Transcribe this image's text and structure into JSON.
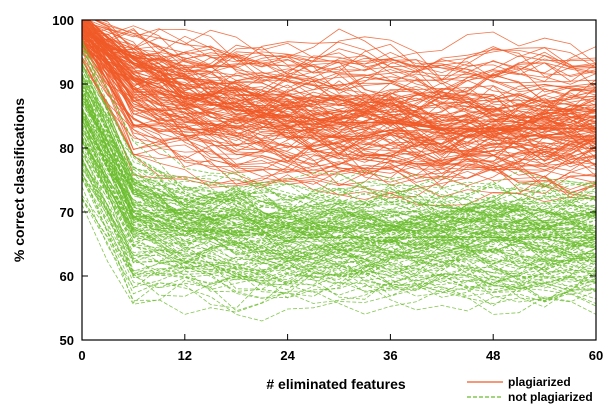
{
  "chart_data": {
    "type": "line",
    "xlabel": "# eliminated features",
    "ylabel": "% correct classifications",
    "xlim": [
      0,
      60
    ],
    "ylim": [
      50,
      100
    ],
    "x_ticks": [
      "0",
      "12",
      "24",
      "36",
      "48",
      "60"
    ],
    "y_ticks": [
      "50",
      "60",
      "70",
      "80",
      "90",
      "100"
    ],
    "grid": false,
    "legend_position": "bottom-right",
    "x": [
      0,
      6,
      12,
      18,
      24,
      30,
      36,
      42,
      48,
      54,
      60
    ],
    "series": [
      {
        "name": "plagiarized",
        "color": "#f05a28",
        "style": "solid",
        "values": [
          99,
          91,
          88,
          86,
          85,
          84,
          84,
          83,
          83,
          83,
          83
        ],
        "band_low": [
          94,
          76,
          74,
          73,
          73,
          72,
          72,
          72,
          72,
          72,
          72
        ],
        "band_high": [
          100,
          99,
          98,
          98,
          98,
          98,
          98,
          98,
          98,
          98,
          98
        ]
      },
      {
        "name": "not plagiarized",
        "color": "#6cbd2e",
        "style": "dashed",
        "values": [
          85,
          70,
          67,
          67,
          66,
          66,
          66,
          66,
          66,
          66,
          66
        ],
        "band_low": [
          70,
          55,
          55,
          55,
          55,
          55,
          55,
          55,
          55,
          55,
          55
        ],
        "band_high": [
          97,
          80,
          76,
          76,
          75,
          75,
          75,
          75,
          75,
          75,
          75
        ]
      }
    ]
  }
}
